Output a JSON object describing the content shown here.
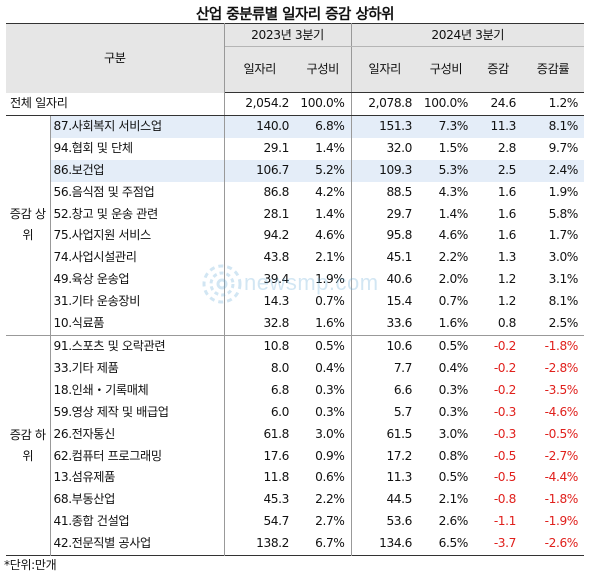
{
  "title": "산업 중분류별 일자리 증감 상하위",
  "header": {
    "gubun": "구분",
    "period_2023": "2023년 3분기",
    "period_2024": "2024년 3분기",
    "col_jobs": "일자리",
    "col_share": "구성비",
    "col_change": "증감",
    "col_rate": "증감률"
  },
  "total": {
    "label": "전체 일자리",
    "jobs_2023": "2,054.2",
    "share_2023": "100.0%",
    "jobs_2024": "2,078.8",
    "share_2024": "100.0%",
    "change": "24.6",
    "rate": "1.2%"
  },
  "groups": [
    {
      "label": "증감 상위",
      "rows": [
        {
          "name": "87.사회복지 서비스업",
          "jobs_2023": "140.0",
          "share_2023": "6.8%",
          "jobs_2024": "151.3",
          "share_2024": "7.3%",
          "change": "11.3",
          "rate": "8.1%",
          "highlight": true
        },
        {
          "name": "94.협회 및 단체",
          "jobs_2023": "29.1",
          "share_2023": "1.4%",
          "jobs_2024": "32.0",
          "share_2024": "1.5%",
          "change": "2.8",
          "rate": "9.7%",
          "highlight": false
        },
        {
          "name": "86.보건업",
          "jobs_2023": "106.7",
          "share_2023": "5.2%",
          "jobs_2024": "109.3",
          "share_2024": "5.3%",
          "change": "2.5",
          "rate": "2.4%",
          "highlight": true
        },
        {
          "name": "56.음식점 및 주점업",
          "jobs_2023": "86.8",
          "share_2023": "4.2%",
          "jobs_2024": "88.5",
          "share_2024": "4.3%",
          "change": "1.6",
          "rate": "1.9%",
          "highlight": false
        },
        {
          "name": "52.창고 및 운송 관련",
          "jobs_2023": "28.1",
          "share_2023": "1.4%",
          "jobs_2024": "29.7",
          "share_2024": "1.4%",
          "change": "1.6",
          "rate": "5.8%",
          "highlight": false
        },
        {
          "name": "75.사업지원 서비스",
          "jobs_2023": "94.2",
          "share_2023": "4.6%",
          "jobs_2024": "95.8",
          "share_2024": "4.6%",
          "change": "1.6",
          "rate": "1.7%",
          "highlight": false
        },
        {
          "name": "74.사업시설관리",
          "jobs_2023": "43.8",
          "share_2023": "2.1%",
          "jobs_2024": "45.1",
          "share_2024": "2.2%",
          "change": "1.3",
          "rate": "3.0%",
          "highlight": false
        },
        {
          "name": "49.육상 운송업",
          "jobs_2023": "39.4",
          "share_2023": "1.9%",
          "jobs_2024": "40.6",
          "share_2024": "2.0%",
          "change": "1.2",
          "rate": "3.1%",
          "highlight": false
        },
        {
          "name": "31.기타 운송장비",
          "jobs_2023": "14.3",
          "share_2023": "0.7%",
          "jobs_2024": "15.4",
          "share_2024": "0.7%",
          "change": "1.2",
          "rate": "8.1%",
          "highlight": false
        },
        {
          "name": "10.식료품",
          "jobs_2023": "32.8",
          "share_2023": "1.6%",
          "jobs_2024": "33.6",
          "share_2024": "1.6%",
          "change": "0.8",
          "rate": "2.5%",
          "highlight": false
        }
      ]
    },
    {
      "label": "증감 하위",
      "rows": [
        {
          "name": "91.스포츠 및 오락관련",
          "jobs_2023": "10.8",
          "share_2023": "0.5%",
          "jobs_2024": "10.6",
          "share_2024": "0.5%",
          "change": "-0.2",
          "rate": "-1.8%",
          "highlight": false
        },
        {
          "name": "33.기타 제품",
          "jobs_2023": "8.0",
          "share_2023": "0.4%",
          "jobs_2024": "7.7",
          "share_2024": "0.4%",
          "change": "-0.2",
          "rate": "-2.8%",
          "highlight": false
        },
        {
          "name": "18.인쇄・기록매체",
          "jobs_2023": "6.8",
          "share_2023": "0.3%",
          "jobs_2024": "6.6",
          "share_2024": "0.3%",
          "change": "-0.2",
          "rate": "-3.5%",
          "highlight": false
        },
        {
          "name": "59.영상 제작 및 배급업",
          "jobs_2023": "6.0",
          "share_2023": "0.3%",
          "jobs_2024": "5.7",
          "share_2024": "0.3%",
          "change": "-0.3",
          "rate": "-4.6%",
          "highlight": false
        },
        {
          "name": "26.전자통신",
          "jobs_2023": "61.8",
          "share_2023": "3.0%",
          "jobs_2024": "61.5",
          "share_2024": "3.0%",
          "change": "-0.3",
          "rate": "-0.5%",
          "highlight": false
        },
        {
          "name": "62.컴퓨터 프로그래밍",
          "jobs_2023": "17.6",
          "share_2023": "0.9%",
          "jobs_2024": "17.2",
          "share_2024": "0.8%",
          "change": "-0.5",
          "rate": "-2.7%",
          "highlight": false
        },
        {
          "name": "13.섬유제품",
          "jobs_2023": "11.8",
          "share_2023": "0.6%",
          "jobs_2024": "11.3",
          "share_2024": "0.5%",
          "change": "-0.5",
          "rate": "-4.4%",
          "highlight": false
        },
        {
          "name": "68.부동산업",
          "jobs_2023": "45.3",
          "share_2023": "2.2%",
          "jobs_2024": "44.5",
          "share_2024": "2.1%",
          "change": "-0.8",
          "rate": "-1.8%",
          "highlight": false
        },
        {
          "name": "41.종합 건설업",
          "jobs_2023": "54.7",
          "share_2023": "2.7%",
          "jobs_2024": "53.6",
          "share_2024": "2.6%",
          "change": "-1.1",
          "rate": "-1.9%",
          "highlight": false
        },
        {
          "name": "42.전문직별 공사업",
          "jobs_2023": "138.2",
          "share_2023": "6.7%",
          "jobs_2024": "134.6",
          "share_2024": "6.5%",
          "change": "-3.7",
          "rate": "-2.6%",
          "highlight": false
        }
      ]
    }
  ],
  "footnote": "*단위:만개",
  "watermark": "newsmp.com",
  "colors": {
    "negative": "#e0201c",
    "highlight": "#e4edf8",
    "header_bg": "#e6e6e6"
  }
}
